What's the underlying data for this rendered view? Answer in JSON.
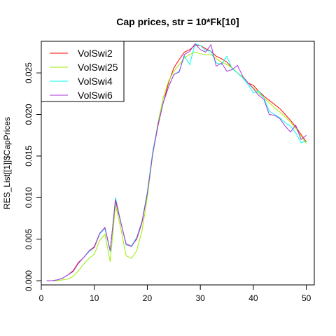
{
  "chart_data": {
    "type": "line",
    "title": "Cap prices, str = 10*Fk[10]",
    "xlabel": "",
    "ylabel": "RES_List[[1]]$CapPrices",
    "xlim": [
      0,
      51.5
    ],
    "ylim": [
      -0.0005,
      0.0288
    ],
    "xticks": [
      0,
      10,
      20,
      30,
      40,
      50
    ],
    "xtick_labels": [
      "0",
      "10",
      "20",
      "30",
      "40",
      "50"
    ],
    "yticks": [
      0.0,
      0.005,
      0.01,
      0.015,
      0.02,
      0.025
    ],
    "ytick_labels": [
      "0.000",
      "0.005",
      "0.010",
      "0.015",
      "0.020",
      "0.025"
    ],
    "legend_position": "top-left",
    "x": [
      1,
      2,
      3,
      4,
      5,
      6,
      7,
      8,
      9,
      10,
      11,
      12,
      13,
      14,
      15,
      16,
      17,
      18,
      19,
      20,
      21,
      22,
      23,
      24,
      25,
      26,
      27,
      28,
      29,
      30,
      31,
      32,
      33,
      34,
      35,
      36,
      37,
      38,
      39,
      40,
      41,
      42,
      43,
      44,
      45,
      46,
      47,
      48,
      49,
      50
    ],
    "series": [
      {
        "name": "VolSwi2",
        "color": "#ff0000",
        "values": [
          0,
          0,
          0.0001,
          0.0003,
          0.0007,
          0.0012,
          0.0022,
          0.0028,
          0.0035,
          0.004,
          0.0056,
          0.0064,
          0.0036,
          0.0096,
          0.007,
          0.0044,
          0.0042,
          0.005,
          0.007,
          0.0105,
          0.0152,
          0.0186,
          0.0214,
          0.0238,
          0.0256,
          0.0266,
          0.0275,
          0.0278,
          0.0283,
          0.0283,
          0.0279,
          0.0276,
          0.027,
          0.0267,
          0.0263,
          0.0256,
          0.025,
          0.0245,
          0.0238,
          0.0235,
          0.0228,
          0.0222,
          0.0217,
          0.0212,
          0.0207,
          0.02,
          0.0193,
          0.0185,
          0.0176,
          0.0167
        ]
      },
      {
        "name": "VolSwi25",
        "color": "#99ee00",
        "values": [
          0,
          0,
          0,
          0.0001,
          0.0002,
          0.0005,
          0.0012,
          0.002,
          0.0027,
          0.0032,
          0.0048,
          0.0056,
          0.0023,
          0.0091,
          0.0063,
          0.003,
          0.0027,
          0.0036,
          0.006,
          0.01,
          0.0151,
          0.019,
          0.022,
          0.024,
          0.0252,
          0.026,
          0.0268,
          0.0272,
          0.0275,
          0.0273,
          0.0272,
          0.0272,
          0.0267,
          0.0263,
          0.026,
          0.0256,
          0.025,
          0.0245,
          0.0238,
          0.0232,
          0.0226,
          0.022,
          0.0214,
          0.0208,
          0.0203,
          0.0197,
          0.0191,
          0.0183,
          0.0174,
          0.0165
        ]
      },
      {
        "name": "VolSwi4",
        "color": "#00ffee",
        "values": [
          0,
          0,
          0.0001,
          0.0003,
          0.0007,
          0.0011,
          0.0021,
          0.0028,
          0.0035,
          0.0041,
          0.0056,
          0.0063,
          0.0035,
          0.01,
          0.0071,
          0.0043,
          0.0042,
          0.0052,
          0.0072,
          0.0107,
          0.0155,
          0.0188,
          0.0214,
          0.0233,
          0.0248,
          0.0252,
          0.027,
          0.026,
          0.0285,
          0.0283,
          0.0277,
          0.0276,
          0.0262,
          0.026,
          0.027,
          0.0255,
          0.025,
          0.0244,
          0.0236,
          0.0226,
          0.0228,
          0.022,
          0.0204,
          0.02,
          0.0196,
          0.019,
          0.0186,
          0.0178,
          0.0166,
          0.0168
        ]
      },
      {
        "name": "VolSwi6",
        "color": "#aa33dd",
        "values": [
          0,
          0,
          0.0001,
          0.0003,
          0.0007,
          0.0011,
          0.0021,
          0.0028,
          0.0036,
          0.0041,
          0.0057,
          0.0064,
          0.0036,
          0.0098,
          0.007,
          0.0044,
          0.0041,
          0.0051,
          0.0071,
          0.0105,
          0.0152,
          0.0187,
          0.0214,
          0.0233,
          0.0248,
          0.0251,
          0.0272,
          0.0276,
          0.0285,
          0.0278,
          0.0275,
          0.0284,
          0.0258,
          0.0262,
          0.0252,
          0.0254,
          0.0259,
          0.0246,
          0.0238,
          0.0231,
          0.0223,
          0.0218,
          0.02,
          0.0199,
          0.0195,
          0.0186,
          0.0179,
          0.0187,
          0.017,
          0.0175
        ]
      }
    ]
  }
}
